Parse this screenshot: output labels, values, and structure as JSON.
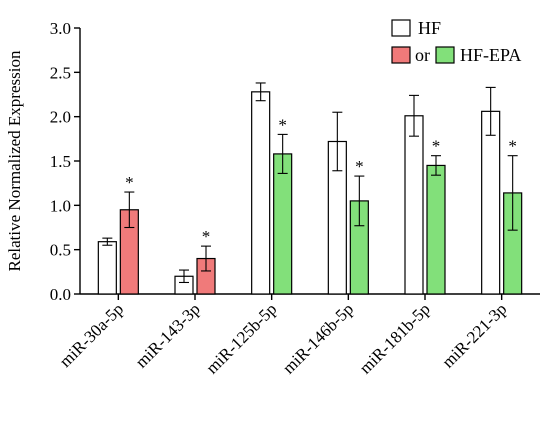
{
  "chart_data": {
    "type": "bar",
    "ylabel": "Relative Normalized Expression",
    "ylim": [
      0,
      3
    ],
    "yticks": [
      "0.0",
      "0.5",
      "1.0",
      "1.5",
      "2.0",
      "2.5",
      "3.0"
    ],
    "grid": false,
    "legend": {
      "placement": "top-right",
      "row1": {
        "label": "HF"
      },
      "row2": {
        "connector": "or",
        "label": "HF-EPA"
      }
    },
    "colors": {
      "hf": "#ffffff",
      "treated_red": "#f07a7a",
      "treated_green": "#82e07a",
      "stroke": "#000000"
    },
    "groups": [
      {
        "category": "miR-30a-5p",
        "hf": 0.59,
        "hf_err": 0.04,
        "treated": 0.95,
        "treated_err": 0.2,
        "treated_color": "red",
        "sig": "*"
      },
      {
        "category": "miR-143-3p",
        "hf": 0.2,
        "hf_err": 0.07,
        "treated": 0.4,
        "treated_err": 0.14,
        "treated_color": "red",
        "sig": "*"
      },
      {
        "category": "miR-125b-5p",
        "hf": 2.28,
        "hf_err": 0.1,
        "treated": 1.58,
        "treated_err": 0.22,
        "treated_color": "green",
        "sig": "*"
      },
      {
        "category": "miR-146b-5p",
        "hf": 1.72,
        "hf_err": 0.33,
        "treated": 1.05,
        "treated_err": 0.28,
        "treated_color": "green",
        "sig": "*"
      },
      {
        "category": "miR-181b-5p",
        "hf": 2.01,
        "hf_err": 0.23,
        "treated": 1.45,
        "treated_err": 0.11,
        "treated_color": "green",
        "sig": "*"
      },
      {
        "category": "miR-221-3p",
        "hf": 2.06,
        "hf_err": 0.27,
        "treated": 1.14,
        "treated_err": 0.42,
        "treated_color": "green",
        "sig": "*"
      }
    ]
  }
}
